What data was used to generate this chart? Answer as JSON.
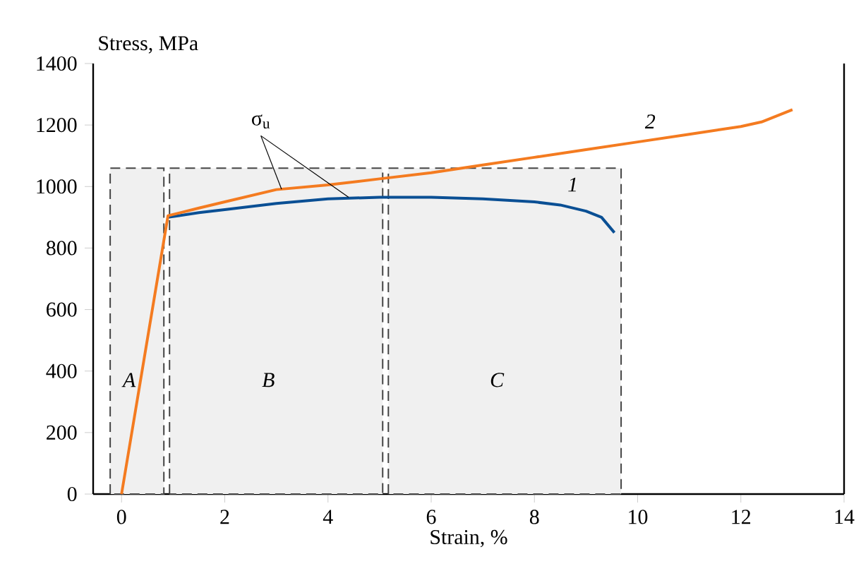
{
  "chart_data": {
    "type": "line",
    "xlabel": "Strain, %",
    "ylabel": "Stress, MPa",
    "xlim": [
      -0.55,
      14
    ],
    "ylim": [
      0,
      1400
    ],
    "xticks": [
      0,
      2,
      4,
      6,
      8,
      10,
      12,
      14
    ],
    "yticks": [
      0,
      200,
      400,
      600,
      800,
      1000,
      1200,
      1400
    ],
    "grid": false,
    "legend": false,
    "marker": "none",
    "line_style": "solid",
    "series": [
      {
        "name": "1",
        "color": "#0a4f94",
        "x": [
          0.9,
          1.5,
          2,
          3,
          4,
          5,
          6,
          7,
          8,
          8.5,
          9,
          9.3,
          9.55
        ],
        "values": [
          900,
          915,
          925,
          945,
          960,
          965,
          965,
          960,
          950,
          940,
          920,
          900,
          850
        ]
      },
      {
        "name": "2",
        "color": "#f47b20",
        "x": [
          0,
          0.9,
          1.5,
          2,
          3,
          4,
          5,
          6,
          7,
          8,
          9,
          10,
          11,
          12,
          12.4,
          13
        ],
        "values": [
          0,
          905,
          930,
          950,
          990,
          1005,
          1025,
          1045,
          1070,
          1095,
          1120,
          1145,
          1170,
          1195,
          1210,
          1250
        ]
      }
    ],
    "bands": [
      {
        "axis": "x",
        "from": -0.22,
        "to": 0.82,
        "label": "*A*",
        "color": "#444444"
      },
      {
        "axis": "x",
        "from": 0.93,
        "to": 5.06,
        "label": "*B*",
        "color": "#444444"
      },
      {
        "axis": "x",
        "from": 5.17,
        "to": 9.68,
        "label": "*C*",
        "color": "#444444"
      }
    ],
    "annotations": [
      {
        "text": "σ$_{u}$",
        "x": 4.4,
        "y": 965
      }
    ]
  }
}
